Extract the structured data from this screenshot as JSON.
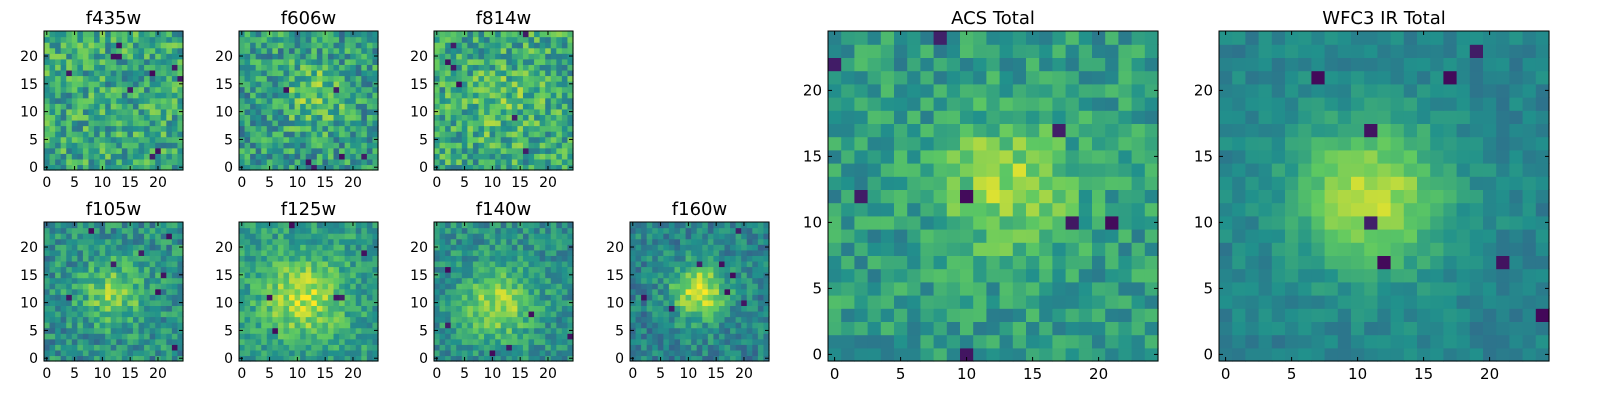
{
  "colormap": [
    "#440154",
    "#3b528b",
    "#21918c",
    "#5ec962",
    "#fde725"
  ],
  "frame_color": "#000000",
  "chart_data": [
    {
      "type": "heatmap",
      "title": "f435w",
      "grid_size": 25,
      "xlim": [
        0,
        24
      ],
      "ylim": [
        0,
        24
      ],
      "xticks": [
        0,
        5,
        10,
        15,
        20
      ],
      "yticks": [
        0,
        5,
        10,
        15,
        20
      ],
      "xticklabels": [
        "0",
        "5",
        "10",
        "15",
        "20"
      ],
      "yticklabels": [
        "0",
        "5",
        "10",
        "15",
        "20"
      ],
      "center": [
        12,
        12
      ],
      "peak": 0.0,
      "width": 6,
      "base": 0.6,
      "noise": 0.45,
      "seed": 11,
      "cold_spots": 10
    },
    {
      "type": "heatmap",
      "title": "f606w",
      "grid_size": 25,
      "xlim": [
        0,
        24
      ],
      "ylim": [
        0,
        24
      ],
      "xticks": [
        0,
        5,
        10,
        15,
        20
      ],
      "yticks": [
        0,
        5,
        10,
        15,
        20
      ],
      "xticklabels": [
        "0",
        "5",
        "10",
        "15",
        "20"
      ],
      "yticklabels": [
        "0",
        "5",
        "10",
        "15",
        "20"
      ],
      "center": [
        13,
        13
      ],
      "peak": 0.2,
      "width": 4,
      "base": 0.55,
      "noise": 0.45,
      "seed": 23,
      "cold_spots": 6
    },
    {
      "type": "heatmap",
      "title": "f814w",
      "grid_size": 25,
      "xlim": [
        0,
        24
      ],
      "ylim": [
        0,
        24
      ],
      "xticks": [
        0,
        5,
        10,
        15,
        20
      ],
      "yticks": [
        0,
        5,
        10,
        15,
        20
      ],
      "xticklabels": [
        "0",
        "5",
        "10",
        "15",
        "20"
      ],
      "yticklabels": [
        "0",
        "5",
        "10",
        "15",
        "20"
      ],
      "center": [
        12,
        12
      ],
      "peak": 0.1,
      "width": 5,
      "base": 0.6,
      "noise": 0.45,
      "seed": 37,
      "cold_spots": 7
    },
    {
      "type": "heatmap",
      "title": "f105w",
      "grid_size": 25,
      "xlim": [
        0,
        24
      ],
      "ylim": [
        0,
        24
      ],
      "xticks": [
        0,
        5,
        10,
        15,
        20
      ],
      "yticks": [
        0,
        5,
        10,
        15,
        20
      ],
      "xticklabels": [
        "0",
        "5",
        "10",
        "15",
        "20"
      ],
      "yticklabels": [
        "0",
        "5",
        "10",
        "15",
        "20"
      ],
      "center": [
        12,
        12
      ],
      "peak": 0.3,
      "width": 4,
      "base": 0.5,
      "noise": 0.35,
      "seed": 41,
      "cold_spots": 8
    },
    {
      "type": "heatmap",
      "title": "f125w",
      "grid_size": 25,
      "xlim": [
        0,
        24
      ],
      "ylim": [
        0,
        24
      ],
      "xticks": [
        0,
        5,
        10,
        15,
        20
      ],
      "yticks": [
        0,
        5,
        10,
        15,
        20
      ],
      "xticklabels": [
        "0",
        "5",
        "10",
        "15",
        "20"
      ],
      "yticklabels": [
        "0",
        "5",
        "10",
        "15",
        "20"
      ],
      "center": [
        11,
        11
      ],
      "peak": 0.35,
      "width": 5,
      "base": 0.55,
      "noise": 0.3,
      "seed": 53,
      "cold_spots": 6
    },
    {
      "type": "heatmap",
      "title": "f140w",
      "grid_size": 25,
      "xlim": [
        0,
        24
      ],
      "ylim": [
        0,
        24
      ],
      "xticks": [
        0,
        5,
        10,
        15,
        20
      ],
      "yticks": [
        0,
        5,
        10,
        15,
        20
      ],
      "xticklabels": [
        "0",
        "5",
        "10",
        "15",
        "20"
      ],
      "yticklabels": [
        "0",
        "5",
        "10",
        "15",
        "20"
      ],
      "center": [
        11,
        10
      ],
      "peak": 0.35,
      "width": 4.5,
      "base": 0.5,
      "noise": 0.3,
      "seed": 67,
      "cold_spots": 6
    },
    {
      "type": "heatmap",
      "title": "f160w",
      "grid_size": 25,
      "xlim": [
        0,
        24
      ],
      "ylim": [
        0,
        24
      ],
      "xticks": [
        0,
        5,
        10,
        15,
        20
      ],
      "yticks": [
        0,
        5,
        10,
        15,
        20
      ],
      "xticklabels": [
        "0",
        "5",
        "10",
        "15",
        "20"
      ],
      "yticklabels": [
        "0",
        "5",
        "10",
        "15",
        "20"
      ],
      "center": [
        12,
        12
      ],
      "peak": 0.5,
      "width": 3.5,
      "base": 0.45,
      "noise": 0.3,
      "seed": 79,
      "cold_spots": 8
    },
    {
      "type": "heatmap",
      "title": "ACS Total",
      "grid_size": 25,
      "xlim": [
        0,
        24
      ],
      "ylim": [
        0,
        24
      ],
      "xticks": [
        0,
        5,
        10,
        15,
        20
      ],
      "yticks": [
        0,
        5,
        10,
        15,
        20
      ],
      "xticklabels": [
        "0",
        "5",
        "10",
        "15",
        "20"
      ],
      "yticklabels": [
        "0",
        "5",
        "10",
        "15",
        "20"
      ],
      "center": [
        13,
        13
      ],
      "peak": 0.3,
      "width": 3.5,
      "base": 0.55,
      "noise": 0.3,
      "seed": 97,
      "cold_spots": 8
    },
    {
      "type": "heatmap",
      "title": "WFC3 IR Total",
      "grid_size": 25,
      "xlim": [
        0,
        24
      ],
      "ylim": [
        0,
        24
      ],
      "xticks": [
        0,
        5,
        10,
        15,
        20
      ],
      "yticks": [
        0,
        5,
        10,
        15,
        20
      ],
      "xticklabels": [
        "0",
        "5",
        "10",
        "15",
        "20"
      ],
      "yticklabels": [
        "0",
        "5",
        "10",
        "15",
        "20"
      ],
      "center": [
        11,
        12
      ],
      "peak": 0.45,
      "width": 4,
      "base": 0.45,
      "noise": 0.15,
      "seed": 131,
      "cold_spots": 8
    }
  ]
}
